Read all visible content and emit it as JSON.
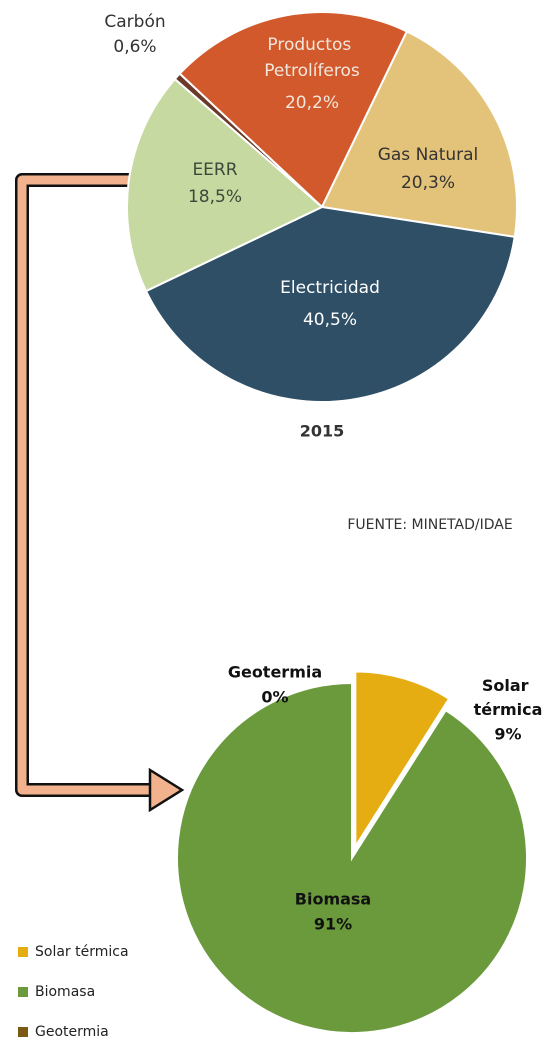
{
  "chart_data": [
    {
      "type": "pie",
      "categories": [
        "Carbón",
        "Productos Petrolíferos",
        "Gas Natural",
        "Electricidad",
        "EERR"
      ],
      "values": [
        0.6,
        20.2,
        20.3,
        40.5,
        18.5
      ],
      "value_labels": [
        "0,6%",
        "20,2%",
        "20,3%",
        "40,5%",
        "18,5%"
      ],
      "colors": [
        "#6b3a2a",
        "#d2592c",
        "#e3c27a",
        "#2e4f66",
        "#c6d9a0"
      ],
      "label": "2015",
      "source": "FUENTE: MINETAD/IDAE"
    },
    {
      "type": "pie",
      "categories": [
        "Solar térmica",
        "Biomasa",
        "Geotermia"
      ],
      "values": [
        9,
        91,
        0
      ],
      "value_labels": [
        "9%",
        "91%",
        "0%"
      ],
      "colors": [
        "#e6ad12",
        "#6a9a3c",
        "#7a5a12"
      ],
      "legend": true
    }
  ]
}
